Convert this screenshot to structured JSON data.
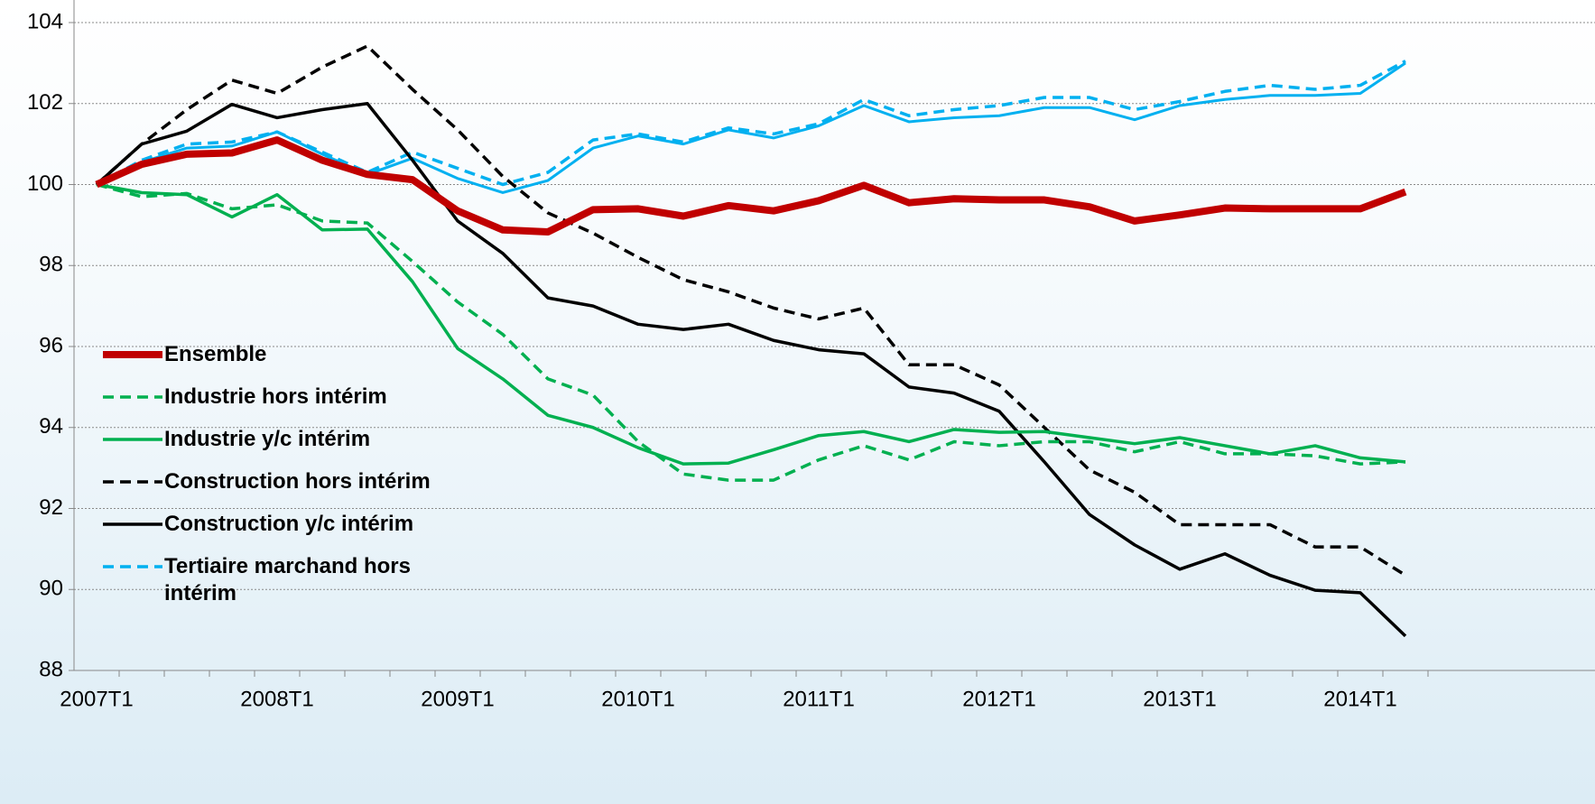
{
  "chart_data": {
    "type": "line",
    "categories": [
      "2007T1",
      null,
      null,
      null,
      "2008T1",
      null,
      null,
      null,
      "2009T1",
      null,
      null,
      null,
      "2010T1",
      null,
      null,
      null,
      "2011T1",
      null,
      null,
      null,
      "2012T1",
      null,
      null,
      null,
      "2013T1",
      null,
      null,
      null,
      "2014T1",
      null
    ],
    "ylim": [
      88,
      104
    ],
    "yticks": [
      88,
      90,
      92,
      94,
      96,
      98,
      100,
      102,
      104
    ],
    "grid": true,
    "series": [
      {
        "name": "Ensemble",
        "color": "#c00000",
        "dash": false,
        "width": 8,
        "values": [
          100,
          100.5,
          100.75,
          100.78,
          101.1,
          100.6,
          100.25,
          100.12,
          99.35,
          98.88,
          98.83,
          99.38,
          99.4,
          99.22,
          99.48,
          99.35,
          99.6,
          99.98,
          99.55,
          99.65,
          99.62,
          99.62,
          99.45,
          99.1,
          99.25,
          99.42,
          99.4,
          99.4,
          99.4,
          99.82
        ]
      },
      {
        "name": "Industrie hors intérim",
        "color": "#00b050",
        "dash": true,
        "width": 3.5,
        "values": [
          100,
          99.7,
          99.78,
          99.4,
          99.5,
          99.1,
          99.05,
          98.1,
          97.1,
          96.3,
          95.2,
          94.8,
          93.65,
          92.85,
          92.7,
          92.7,
          93.2,
          93.55,
          93.2,
          93.65,
          93.55,
          93.65,
          93.65,
          93.4,
          93.65,
          93.35,
          93.35,
          93.3,
          93.1,
          93.15
        ]
      },
      {
        "name": "Industrie  y/c intérim",
        "color": "#00b050",
        "dash": false,
        "width": 3.5,
        "values": [
          100,
          99.8,
          99.75,
          99.2,
          99.75,
          98.88,
          98.9,
          97.6,
          95.95,
          95.2,
          94.3,
          94.0,
          93.5,
          93.1,
          93.12,
          93.45,
          93.8,
          93.9,
          93.65,
          93.95,
          93.88,
          93.9,
          93.75,
          93.6,
          93.75,
          93.55,
          93.35,
          93.55,
          93.25,
          93.15
        ]
      },
      {
        "name": "Construction  hors intérim",
        "color": "#000000",
        "dash": true,
        "width": 3.5,
        "values": [
          100,
          101.0,
          101.85,
          102.58,
          102.25,
          102.9,
          103.42,
          102.35,
          101.35,
          100.2,
          99.3,
          98.8,
          98.2,
          97.65,
          97.35,
          96.95,
          96.68,
          96.95,
          95.55,
          95.55,
          95.05,
          94.0,
          92.95,
          92.4,
          91.6,
          91.6,
          91.6,
          91.05,
          91.05,
          90.35
        ]
      },
      {
        "name": "Construction  y/c intérim",
        "color": "#000000",
        "dash": false,
        "width": 3.5,
        "values": [
          100,
          101.0,
          101.32,
          101.98,
          101.65,
          101.85,
          102.0,
          100.6,
          99.1,
          98.3,
          97.2,
          97.0,
          96.55,
          96.42,
          96.55,
          96.15,
          95.92,
          95.82,
          95.0,
          94.85,
          94.4,
          93.15,
          91.85,
          91.1,
          90.5,
          90.88,
          90.35,
          89.98,
          89.92,
          88.85
        ]
      },
      {
        "name": "Tertiaire marchand  hors intérim",
        "color": "#00b0f0",
        "dash": true,
        "width": 3.5,
        "values": [
          100,
          100.6,
          101.0,
          101.05,
          101.3,
          100.8,
          100.3,
          100.8,
          100.4,
          100.0,
          100.3,
          101.1,
          101.25,
          101.05,
          101.4,
          101.25,
          101.5,
          102.1,
          101.7,
          101.85,
          101.95,
          102.15,
          102.15,
          101.85,
          102.05,
          102.3,
          102.45,
          102.35,
          102.45,
          103.05
        ]
      },
      {
        "name": null,
        "color": "#00b0f0",
        "dash": false,
        "width": 3,
        "values": [
          100,
          100.55,
          100.9,
          100.95,
          101.3,
          100.75,
          100.25,
          100.65,
          100.15,
          99.8,
          100.1,
          100.9,
          101.2,
          101.0,
          101.35,
          101.15,
          101.45,
          101.95,
          101.55,
          101.65,
          101.7,
          101.9,
          101.9,
          101.6,
          101.95,
          102.1,
          102.2,
          102.2,
          102.25,
          103.0
        ]
      }
    ]
  }
}
